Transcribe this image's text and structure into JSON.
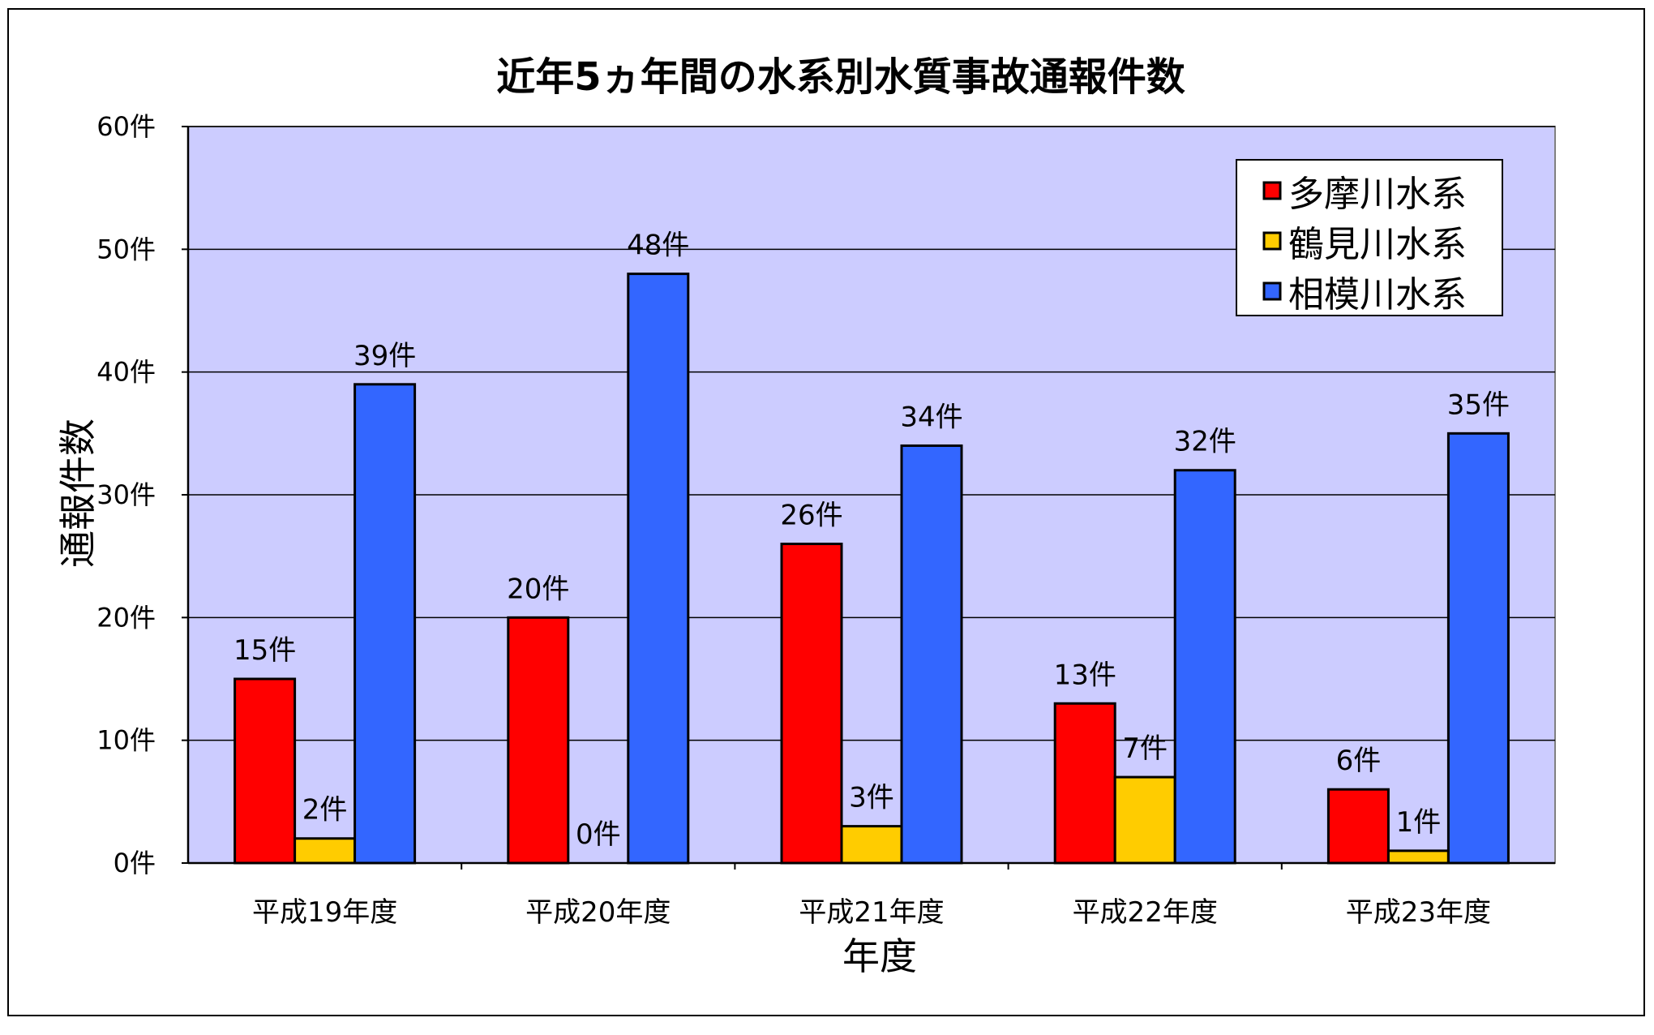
{
  "chart_data": {
    "type": "bar",
    "title": "近年5ヵ年間の水系別水質事故通報件数",
    "xlabel": "年度",
    "ylabel": "通報件数",
    "categories": [
      "平成19年度",
      "平成20年度",
      "平成21年度",
      "平成22年度",
      "平成23年度"
    ],
    "ylim": [
      0,
      60
    ],
    "yticks": [
      0,
      10,
      20,
      30,
      40,
      50,
      60
    ],
    "ytick_labels": [
      "0件",
      "10件",
      "20件",
      "30件",
      "40件",
      "50件",
      "60件"
    ],
    "unit_suffix": "件",
    "grid": true,
    "legend_position": "top-right",
    "plot_background": "#CCCCFF",
    "series": [
      {
        "name": "多摩川水系",
        "color": "#FF0000",
        "values": [
          15,
          20,
          26,
          13,
          6
        ],
        "labels": [
          "15件",
          "20件",
          "26件",
          "13件",
          "6件"
        ]
      },
      {
        "name": "鶴見川水系",
        "color": "#FFCC00",
        "values": [
          2,
          0,
          3,
          7,
          1
        ],
        "labels": [
          "2件",
          "0件",
          "3件",
          "7件",
          "1件"
        ]
      },
      {
        "name": "相模川水系",
        "color": "#3366FF",
        "values": [
          39,
          48,
          34,
          32,
          35
        ],
        "labels": [
          "39件",
          "48件",
          "34件",
          "32件",
          "35件"
        ]
      }
    ]
  }
}
